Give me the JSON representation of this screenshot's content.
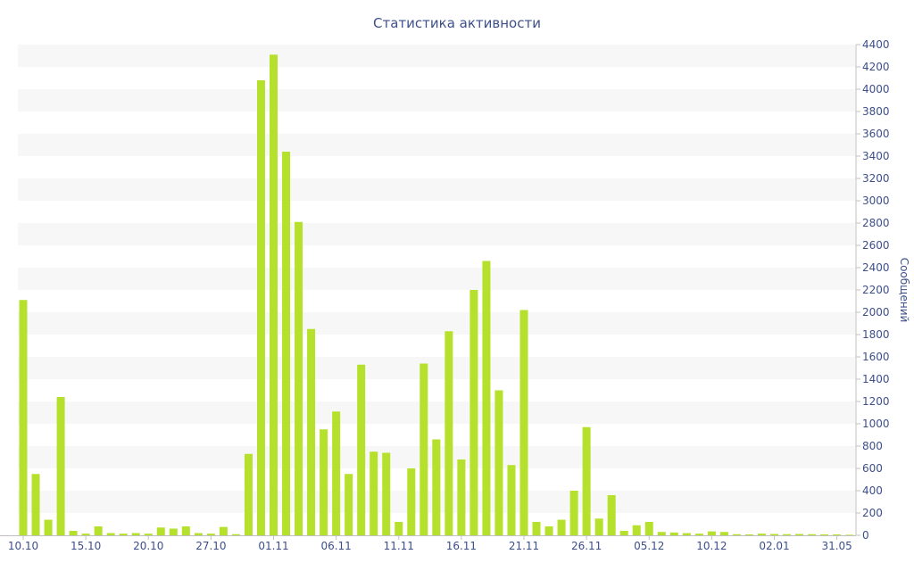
{
  "chart_data": {
    "type": "bar",
    "title": "Статистика активности",
    "xlabel": "",
    "ylabel": "Сообщений",
    "y_axis_position": "right",
    "ylim": [
      0,
      4400
    ],
    "yticks": [
      0,
      200,
      400,
      600,
      800,
      1000,
      1200,
      1400,
      1600,
      1800,
      2000,
      2200,
      2400,
      2600,
      2800,
      3000,
      3200,
      3400,
      3600,
      3800,
      4000,
      4200,
      4400
    ],
    "bar_color": "#b5e12c",
    "band_color": "#f7f7f7",
    "text_color": "#3d4f8a",
    "grid": "alternating horizontal bands",
    "x_tick_labels": [
      {
        "index": 0,
        "label": "10.10"
      },
      {
        "index": 5,
        "label": "15.10"
      },
      {
        "index": 10,
        "label": "20.10"
      },
      {
        "index": 15,
        "label": "27.10"
      },
      {
        "index": 20,
        "label": "01.11"
      },
      {
        "index": 25,
        "label": "06.11"
      },
      {
        "index": 30,
        "label": "11.11"
      },
      {
        "index": 35,
        "label": "16.11"
      },
      {
        "index": 40,
        "label": "21.11"
      },
      {
        "index": 45,
        "label": "26.11"
      },
      {
        "index": 50,
        "label": "05.12"
      },
      {
        "index": 55,
        "label": "10.12"
      },
      {
        "index": 60,
        "label": "02.01"
      },
      {
        "index": 65,
        "label": "31.05"
      }
    ],
    "values": [
      2110,
      550,
      140,
      1240,
      40,
      15,
      80,
      20,
      15,
      20,
      15,
      70,
      60,
      80,
      20,
      15,
      75,
      10,
      730,
      4080,
      4310,
      3440,
      2810,
      1850,
      950,
      1110,
      550,
      1530,
      750,
      740,
      120,
      600,
      1540,
      860,
      1830,
      680,
      2200,
      2460,
      1300,
      630,
      2020,
      120,
      80,
      140,
      400,
      970,
      150,
      360,
      40,
      90,
      120,
      30,
      25,
      20,
      15,
      35,
      30,
      10,
      8,
      15,
      12,
      10,
      12,
      10,
      8,
      8,
      5
    ]
  }
}
